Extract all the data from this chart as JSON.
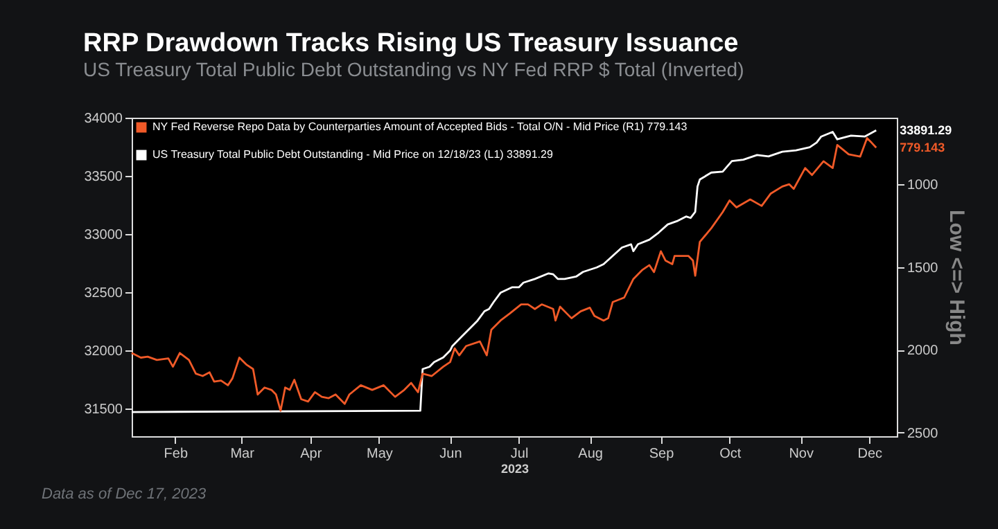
{
  "chart_data": {
    "type": "line",
    "title": "RRP Drawdown Tracks Rising US Treasury Issuance",
    "subtitle": "US Treasury Total Public Debt Outstanding vs NY Fed RRP $ Total (Inverted)",
    "xlabel": "2023",
    "y2label": "Low <=> High",
    "xlim": [
      "2023-01-27",
      "2023-12-27"
    ],
    "xticks": [
      {
        "value": "2023-02-15",
        "label": "Feb"
      },
      {
        "value": "2023-03-16",
        "label": "Mar"
      },
      {
        "value": "2023-04-15",
        "label": "Apr"
      },
      {
        "value": "2023-05-15",
        "label": "May"
      },
      {
        "value": "2023-06-15",
        "label": "Jun"
      },
      {
        "value": "2023-07-15",
        "label": "Jul"
      },
      {
        "value": "2023-08-15",
        "label": "Aug"
      },
      {
        "value": "2023-09-15",
        "label": "Sep"
      },
      {
        "value": "2023-10-15",
        "label": "Oct"
      },
      {
        "value": "2023-11-15",
        "label": "Nov"
      },
      {
        "value": "2023-12-15",
        "label": "Dec"
      }
    ],
    "ylim": [
      31260,
      34000
    ],
    "yticks": [
      31500,
      32000,
      32500,
      33000,
      33500,
      34000
    ],
    "y2lim": [
      2523,
      598
    ],
    "y2ticks": [
      1000,
      1500,
      2000,
      2500
    ],
    "grid": false,
    "legend": "top left",
    "line_style": "solid",
    "marker": "none",
    "series": [
      {
        "name": "NY Fed Reverse Repo Data by Counterparties Amount of Accepted Bids - Total O/N - Mid Price (R1) 779.143",
        "color": "#f05a28",
        "axis": "y2",
        "x": [
          "2023-01-27",
          "2023-01-31",
          "2023-02-03",
          "2023-02-07",
          "2023-02-12",
          "2023-02-14",
          "2023-02-17",
          "2023-02-21",
          "2023-02-24",
          "2023-02-27",
          "2023-03-02",
          "2023-03-04",
          "2023-03-07",
          "2023-03-10",
          "2023-03-12",
          "2023-03-15",
          "2023-03-18",
          "2023-03-21",
          "2023-03-23",
          "2023-03-26",
          "2023-03-29",
          "2023-03-31",
          "2023-04-02",
          "2023-04-04",
          "2023-04-06",
          "2023-04-08",
          "2023-04-11",
          "2023-04-14",
          "2023-04-17",
          "2023-04-20",
          "2023-04-23",
          "2023-04-26",
          "2023-04-30",
          "2023-05-02",
          "2023-05-07",
          "2023-05-12",
          "2023-05-17",
          "2023-05-22",
          "2023-05-26",
          "2023-05-29",
          "2023-06-01",
          "2023-06-03",
          "2023-06-07",
          "2023-06-12",
          "2023-06-15",
          "2023-06-17",
          "2023-06-19",
          "2023-06-22",
          "2023-06-28",
          "2023-07-01",
          "2023-07-03",
          "2023-07-07",
          "2023-07-11",
          "2023-07-16",
          "2023-07-19",
          "2023-07-22",
          "2023-07-25",
          "2023-07-30",
          "2023-07-31",
          "2023-08-02",
          "2023-08-07",
          "2023-08-11",
          "2023-08-15",
          "2023-08-17",
          "2023-08-21",
          "2023-08-23",
          "2023-08-25",
          "2023-08-30",
          "2023-09-03",
          "2023-09-07",
          "2023-09-10",
          "2023-09-12",
          "2023-09-15",
          "2023-09-17",
          "2023-09-20",
          "2023-09-21",
          "2023-09-27",
          "2023-09-29",
          "2023-09-30",
          "2023-10-02",
          "2023-10-07",
          "2023-10-12",
          "2023-10-15",
          "2023-10-18",
          "2023-10-24",
          "2023-10-29",
          "2023-11-02",
          "2023-11-07",
          "2023-11-10",
          "2023-11-12",
          "2023-11-17",
          "2023-11-20",
          "2023-11-25",
          "2023-11-29",
          "2023-12-01",
          "2023-12-06",
          "2023-12-11",
          "2023-12-14",
          "2023-12-16",
          "2023-12-18"
        ],
        "values": [
          2020,
          2048,
          2042,
          2062,
          2053,
          2103,
          2020,
          2062,
          2145,
          2159,
          2137,
          2193,
          2187,
          2215,
          2173,
          2048,
          2089,
          2117,
          2271,
          2229,
          2243,
          2271,
          2369,
          2229,
          2243,
          2182,
          2299,
          2313,
          2257,
          2285,
          2293,
          2271,
          2327,
          2271,
          2215,
          2243,
          2215,
          2285,
          2243,
          2201,
          2257,
          2145,
          2159,
          2103,
          2075,
          1992,
          2034,
          1978,
          1950,
          2034,
          1880,
          1824,
          1782,
          1726,
          1726,
          1754,
          1726,
          1754,
          1824,
          1740,
          1810,
          1768,
          1746,
          1796,
          1824,
          1810,
          1712,
          1685,
          1573,
          1517,
          1489,
          1531,
          1405,
          1461,
          1483,
          1433,
          1433,
          1461,
          1553,
          1349,
          1266,
          1168,
          1098,
          1140,
          1092,
          1131,
          1056,
          1014,
          1000,
          1028,
          902,
          944,
          861,
          902,
          763,
          819,
          833,
          721,
          749,
          779.143
        ]
      },
      {
        "name": "US Treasury Total Public Debt Outstanding - Mid Price on 12/18/23 (L1) 33891.29",
        "color": "#ffffff",
        "x": [
          "2023-01-27",
          "2023-06-02",
          "2023-06-03",
          "2023-06-06",
          "2023-06-08",
          "2023-06-12",
          "2023-06-15",
          "2023-06-16",
          "2023-06-20",
          "2023-06-24",
          "2023-06-27",
          "2023-06-30",
          "2023-07-02",
          "2023-07-04",
          "2023-07-07",
          "2023-07-12",
          "2023-07-15",
          "2023-07-17",
          "2023-07-22",
          "2023-07-28",
          "2023-07-30",
          "2023-08-01",
          "2023-08-04",
          "2023-08-09",
          "2023-08-12",
          "2023-08-18",
          "2023-08-21",
          "2023-08-25",
          "2023-08-29",
          "2023-09-02",
          "2023-09-03",
          "2023-09-05",
          "2023-09-10",
          "2023-09-14",
          "2023-09-18",
          "2023-09-22",
          "2023-09-26",
          "2023-09-28",
          "2023-09-30",
          "2023-10-01",
          "2023-10-02",
          "2023-10-07",
          "2023-10-12",
          "2023-10-16",
          "2023-10-21",
          "2023-10-27",
          "2023-11-01",
          "2023-11-07",
          "2023-11-13",
          "2023-11-19",
          "2023-11-22",
          "2023-11-24",
          "2023-11-29",
          "2023-12-01",
          "2023-12-07",
          "2023-12-13",
          "2023-12-18"
        ],
        "values": [
          31468,
          31480,
          31838,
          31857,
          31897,
          31937,
          31997,
          32036,
          32116,
          32195,
          32255,
          32335,
          32355,
          32414,
          32494,
          32541,
          32541,
          32581,
          32613,
          32661,
          32653,
          32613,
          32613,
          32633,
          32673,
          32712,
          32740,
          32812,
          32883,
          32911,
          32852,
          32911,
          32951,
          33011,
          33082,
          33110,
          33150,
          33138,
          33190,
          33408,
          33468,
          33528,
          33536,
          33627,
          33639,
          33679,
          33667,
          33707,
          33719,
          33746,
          33786,
          33838,
          33878,
          33814,
          33846,
          33838,
          33891.29
        ]
      }
    ],
    "annotations": [
      {
        "text": "33891.29",
        "x": "2023-12-18",
        "y": 33891.29
      },
      "779.143",
      "Data as of Dec 17, 2023"
    ]
  }
}
